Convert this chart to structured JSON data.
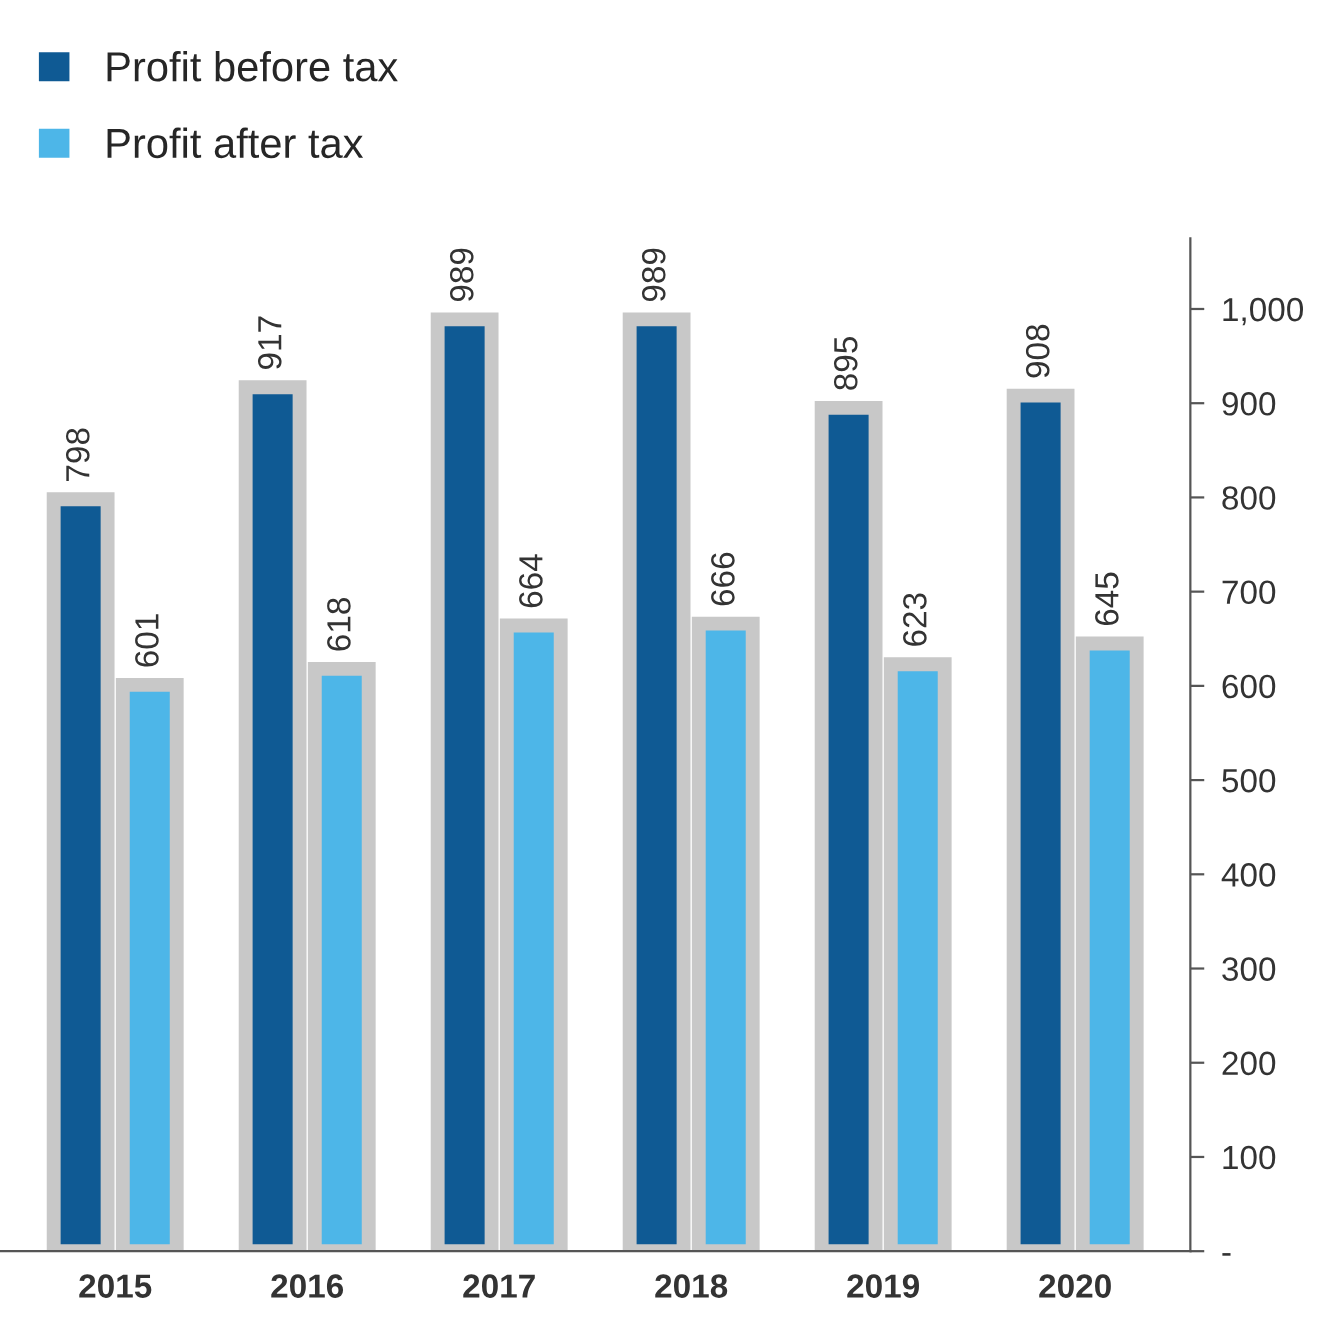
{
  "chart_data": {
    "type": "bar",
    "categories": [
      "2015",
      "2016",
      "2017",
      "2018",
      "2019",
      "2020"
    ],
    "series": [
      {
        "name": "Profit before tax",
        "color": "#0f5a94",
        "values": [
          798,
          917,
          989,
          989,
          895,
          908
        ]
      },
      {
        "name": "Profit after tax",
        "color": "#4db6e8",
        "values": [
          601,
          618,
          664,
          666,
          623,
          645
        ]
      }
    ],
    "ylim": [
      0,
      1075
    ],
    "yticks": [
      {
        "value": 0,
        "label": "-"
      },
      100,
      200,
      300,
      400,
      500,
      600,
      700,
      800,
      900,
      {
        "value": 1000,
        "label": "1,000"
      }
    ],
    "data_labels": true,
    "grid": false,
    "legend": "top left"
  }
}
